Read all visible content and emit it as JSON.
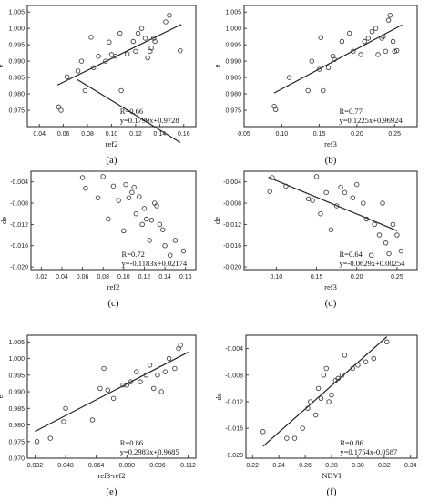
{
  "chart_data": [
    {
      "type": "scatter",
      "panel_label": "(a)",
      "xlabel": "ref2",
      "ylabel": "e",
      "xlim": [
        0.03,
        0.17
      ],
      "ylim": [
        0.97,
        1.007
      ],
      "xticks": [
        "0.04",
        "0.06",
        "0.08",
        "0.10",
        "0.12",
        "0.14",
        "0.16"
      ],
      "yticks": [
        "0.975",
        "0.980",
        "0.985",
        "0.990",
        "0.995",
        "1.000",
        "1.005"
      ],
      "xtick_values": [
        0.04,
        0.06,
        0.08,
        0.1,
        0.12,
        0.14,
        0.16
      ],
      "ytick_values": [
        0.975,
        0.98,
        0.985,
        0.99,
        0.995,
        1.0,
        1.005
      ],
      "annotation": [
        "R=0.66",
        "y=0.1799x+0.9728"
      ],
      "fit": {
        "slope": 0.1799,
        "intercept": 0.9728,
        "xrange": [
          0.055,
          0.158
        ]
      },
      "x": [
        0.056,
        0.058,
        0.063,
        0.072,
        0.075,
        0.078,
        0.083,
        0.085,
        0.089,
        0.095,
        0.098,
        0.1,
        0.103,
        0.107,
        0.108,
        0.113,
        0.118,
        0.12,
        0.122,
        0.125,
        0.128,
        0.13,
        0.132,
        0.133,
        0.135,
        0.136,
        0.145,
        0.148,
        0.157
      ],
      "y": [
        0.976,
        0.975,
        0.9852,
        0.987,
        0.99,
        0.981,
        0.9973,
        0.988,
        0.9915,
        0.99,
        0.9958,
        0.992,
        0.9915,
        0.9985,
        0.981,
        0.9922,
        0.996,
        0.993,
        0.9985,
        1.0,
        0.997,
        0.991,
        0.993,
        0.994,
        0.997,
        0.996,
        1.002,
        1.004,
        0.9932
      ]
    },
    {
      "type": "scatter",
      "panel_label": "(b)",
      "xlabel": "ref3",
      "ylabel": "e",
      "xlim": [
        0.05,
        0.28
      ],
      "ylim": [
        0.97,
        1.007
      ],
      "xticks": [
        "0.05",
        "0.10",
        "0.15",
        "0.20",
        "0.25"
      ],
      "yticks": [
        "0.975",
        "0.980",
        "0.985",
        "0.990",
        "0.995",
        "1.000",
        "1.005"
      ],
      "xtick_values": [
        0.05,
        0.1,
        0.15,
        0.2,
        0.25
      ],
      "ytick_values": [
        0.975,
        0.98,
        0.985,
        0.99,
        0.995,
        1.0,
        1.005
      ],
      "annotation": [
        "R=0.77",
        "y=0.1225x+0.96924"
      ],
      "fit": {
        "slope": 0.1225,
        "intercept": 0.96924,
        "xrange": [
          0.09,
          0.26
        ]
      },
      "x": [
        0.09,
        0.092,
        0.11,
        0.135,
        0.14,
        0.15,
        0.152,
        0.155,
        0.162,
        0.168,
        0.17,
        0.18,
        0.19,
        0.195,
        0.205,
        0.21,
        0.215,
        0.22,
        0.225,
        0.228,
        0.233,
        0.235,
        0.238,
        0.242,
        0.244,
        0.248,
        0.25,
        0.253
      ],
      "y": [
        0.9762,
        0.9752,
        0.985,
        0.981,
        0.99,
        0.9875,
        0.9972,
        0.981,
        0.988,
        0.9915,
        0.9905,
        0.996,
        0.9985,
        0.993,
        0.992,
        0.996,
        0.997,
        0.999,
        1.0,
        0.992,
        0.997,
        0.9975,
        0.993,
        1.0025,
        1.004,
        0.996,
        0.993,
        0.9932
      ]
    },
    {
      "type": "scatter",
      "panel_label": "(c)",
      "xlabel": "ref2",
      "ylabel": "de",
      "xlim": [
        0.01,
        0.17
      ],
      "ylim": [
        -0.0205,
        -0.002
      ],
      "xticks": [
        "0.02",
        "0.04",
        "0.06",
        "0.08",
        "0.10",
        "0.12",
        "0.14",
        "0.16"
      ],
      "yticks": [
        "-0.004",
        "-0.008",
        "-0.012",
        "-0.016",
        "-0.020"
      ],
      "xtick_values": [
        0.02,
        0.04,
        0.06,
        0.08,
        0.1,
        0.12,
        0.14,
        0.16
      ],
      "ytick_values": [
        -0.004,
        -0.008,
        -0.012,
        -0.016,
        -0.02
      ],
      "annotation": [
        "R=0.72",
        "y=-0.1183x+0.02174"
      ],
      "fit": {
        "slope": -0.1183,
        "intercept": 0.02174,
        "xrange": [
          0.055,
          0.155
        ]
      },
      "x": [
        0.06,
        0.063,
        0.075,
        0.08,
        0.085,
        0.09,
        0.095,
        0.1,
        0.102,
        0.105,
        0.108,
        0.11,
        0.112,
        0.115,
        0.118,
        0.12,
        0.122,
        0.125,
        0.127,
        0.13,
        0.132,
        0.135,
        0.138,
        0.14,
        0.145,
        0.15,
        0.158
      ],
      "y": [
        -0.0032,
        -0.0052,
        -0.007,
        -0.003,
        -0.011,
        -0.0048,
        -0.0075,
        -0.0132,
        -0.0045,
        -0.007,
        -0.006,
        -0.005,
        -0.01,
        -0.0068,
        -0.012,
        -0.009,
        -0.011,
        -0.015,
        -0.0112,
        -0.008,
        -0.0085,
        -0.012,
        -0.013,
        -0.016,
        -0.0178,
        -0.015,
        -0.017
      ]
    },
    {
      "type": "scatter",
      "panel_label": "(d)",
      "xlabel": "ref3",
      "ylabel": "de",
      "xlim": [
        0.06,
        0.275
      ],
      "ylim": [
        -0.0205,
        -0.002
      ],
      "xticks": [
        "0.10",
        "0.15",
        "0.20",
        "0.25"
      ],
      "yticks": [
        "-0.004",
        "-0.008",
        "-0.012",
        "-0.016",
        "-0.020"
      ],
      "xtick_values": [
        0.1,
        0.15,
        0.2,
        0.25
      ],
      "ytick_values": [
        -0.004,
        -0.008,
        -0.012,
        -0.016,
        -0.02
      ],
      "annotation": [
        "R=0.64",
        "y=-0.0629x+0.00254"
      ],
      "fit": {
        "slope": -0.0629,
        "intercept": 0.00254,
        "xrange": [
          0.09,
          0.25
        ]
      },
      "x": [
        0.092,
        0.095,
        0.112,
        0.14,
        0.145,
        0.15,
        0.155,
        0.162,
        0.168,
        0.175,
        0.18,
        0.185,
        0.195,
        0.2,
        0.208,
        0.212,
        0.218,
        0.222,
        0.228,
        0.232,
        0.236,
        0.24,
        0.245,
        0.25,
        0.255
      ],
      "y": [
        -0.0058,
        -0.0032,
        -0.0048,
        -0.0072,
        -0.0075,
        -0.003,
        -0.01,
        -0.006,
        -0.013,
        -0.0085,
        -0.005,
        -0.006,
        -0.007,
        -0.0045,
        -0.008,
        -0.011,
        -0.0178,
        -0.012,
        -0.014,
        -0.008,
        -0.0155,
        -0.0175,
        -0.012,
        -0.014,
        -0.017
      ]
    },
    {
      "type": "scatter",
      "panel_label": "(e)",
      "xlabel": "ref3-ref2",
      "ylabel": "e",
      "xlim": [
        0.028,
        0.116
      ],
      "ylim": [
        0.97,
        1.007
      ],
      "xticks": [
        "0.032",
        "0.048",
        "0.064",
        "0.080",
        "0.096",
        "0.112"
      ],
      "yticks": [
        "0.970",
        "0.975",
        "0.980",
        "0.985",
        "0.990",
        "0.995",
        "1.000",
        "1.005"
      ],
      "xtick_values": [
        0.032,
        0.048,
        0.064,
        0.08,
        0.096,
        0.112
      ],
      "ytick_values": [
        0.97,
        0.975,
        0.98,
        0.985,
        0.99,
        0.995,
        1.0,
        1.005
      ],
      "annotation": [
        "R=0.86",
        "y=0.2983x+0.9685"
      ],
      "fit": {
        "slope": 0.2983,
        "intercept": 0.9685,
        "xrange": [
          0.032,
          0.112
        ]
      },
      "x": [
        0.033,
        0.04,
        0.047,
        0.048,
        0.062,
        0.066,
        0.068,
        0.07,
        0.073,
        0.078,
        0.08,
        0.082,
        0.085,
        0.087,
        0.09,
        0.092,
        0.094,
        0.096,
        0.098,
        0.1,
        0.102,
        0.105,
        0.107,
        0.108
      ],
      "y": [
        0.975,
        0.976,
        0.981,
        0.985,
        0.9815,
        0.991,
        0.997,
        0.9905,
        0.988,
        0.992,
        0.992,
        0.993,
        0.996,
        0.993,
        0.995,
        0.998,
        0.991,
        0.995,
        0.99,
        0.996,
        1.0,
        0.997,
        1.003,
        1.004
      ]
    },
    {
      "type": "scatter",
      "panel_label": "(f)",
      "xlabel": "NDVI",
      "ylabel": "de",
      "xlim": [
        0.215,
        0.345
      ],
      "ylim": [
        -0.0205,
        -0.002
      ],
      "xticks": [
        "0.22",
        "0.24",
        "0.26",
        "0.28",
        "0.30",
        "0.32",
        "0.34"
      ],
      "yticks": [
        "-0.004",
        "-0.008",
        "-0.012",
        "-0.016",
        "-0.020"
      ],
      "xtick_values": [
        0.22,
        0.24,
        0.26,
        0.28,
        0.3,
        0.32,
        0.34
      ],
      "ytick_values": [
        -0.004,
        -0.008,
        -0.012,
        -0.016,
        -0.02
      ],
      "annotation": [
        "R=0.86",
        "y=0.1754x-0.0587"
      ],
      "fit": {
        "slope": 0.1754,
        "intercept": -0.0587,
        "xrange": [
          0.228,
          0.322
        ]
      },
      "x": [
        0.228,
        0.246,
        0.252,
        0.258,
        0.262,
        0.264,
        0.268,
        0.27,
        0.272,
        0.274,
        0.276,
        0.278,
        0.28,
        0.283,
        0.285,
        0.288,
        0.29,
        0.296,
        0.3,
        0.306,
        0.312,
        0.322
      ],
      "y": [
        -0.0165,
        -0.0175,
        -0.0175,
        -0.016,
        -0.013,
        -0.012,
        -0.014,
        -0.01,
        -0.0115,
        -0.008,
        -0.007,
        -0.012,
        -0.011,
        -0.0088,
        -0.0085,
        -0.008,
        -0.005,
        -0.007,
        -0.0065,
        -0.006,
        -0.0055,
        -0.003
      ]
    }
  ]
}
